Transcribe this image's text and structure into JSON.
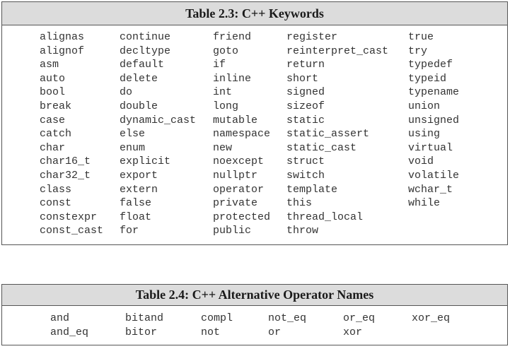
{
  "table1": {
    "title": "Table 2.3: C++ Keywords",
    "columns": [
      [
        "alignas",
        "alignof",
        "asm",
        "auto",
        "bool",
        "break",
        "case",
        "catch",
        "char",
        "char16_t",
        "char32_t",
        "class",
        "const",
        "constexpr",
        "const_cast"
      ],
      [
        "continue",
        "decltype",
        "default",
        "delete",
        "do",
        "double",
        "dynamic_cast",
        "else",
        "enum",
        "explicit",
        "export",
        "extern",
        "false",
        "float",
        "for"
      ],
      [
        "friend",
        "goto",
        "if",
        "inline",
        "int",
        "long",
        "mutable",
        "namespace",
        "new",
        "noexcept",
        "nullptr",
        "operator",
        "private",
        "protected",
        "public"
      ],
      [
        "register",
        "reinterpret_cast",
        "return",
        "short",
        "signed",
        "sizeof",
        "static",
        "static_assert",
        "static_cast",
        "struct",
        "switch",
        "template",
        "this",
        "thread_local",
        "throw"
      ],
      [
        "true",
        "try",
        "typedef",
        "typeid",
        "typename",
        "union",
        "unsigned",
        "using",
        "virtual",
        "void",
        "volatile",
        "wchar_t",
        "while"
      ]
    ]
  },
  "table2": {
    "title": "Table 2.4: C++ Alternative Operator Names",
    "columns": [
      [
        "and",
        "and_eq"
      ],
      [
        "bitand",
        "bitor"
      ],
      [
        "compl",
        "not"
      ],
      [
        "not_eq",
        "or"
      ],
      [
        "or_eq",
        "xor"
      ],
      [
        "xor_eq"
      ]
    ]
  }
}
